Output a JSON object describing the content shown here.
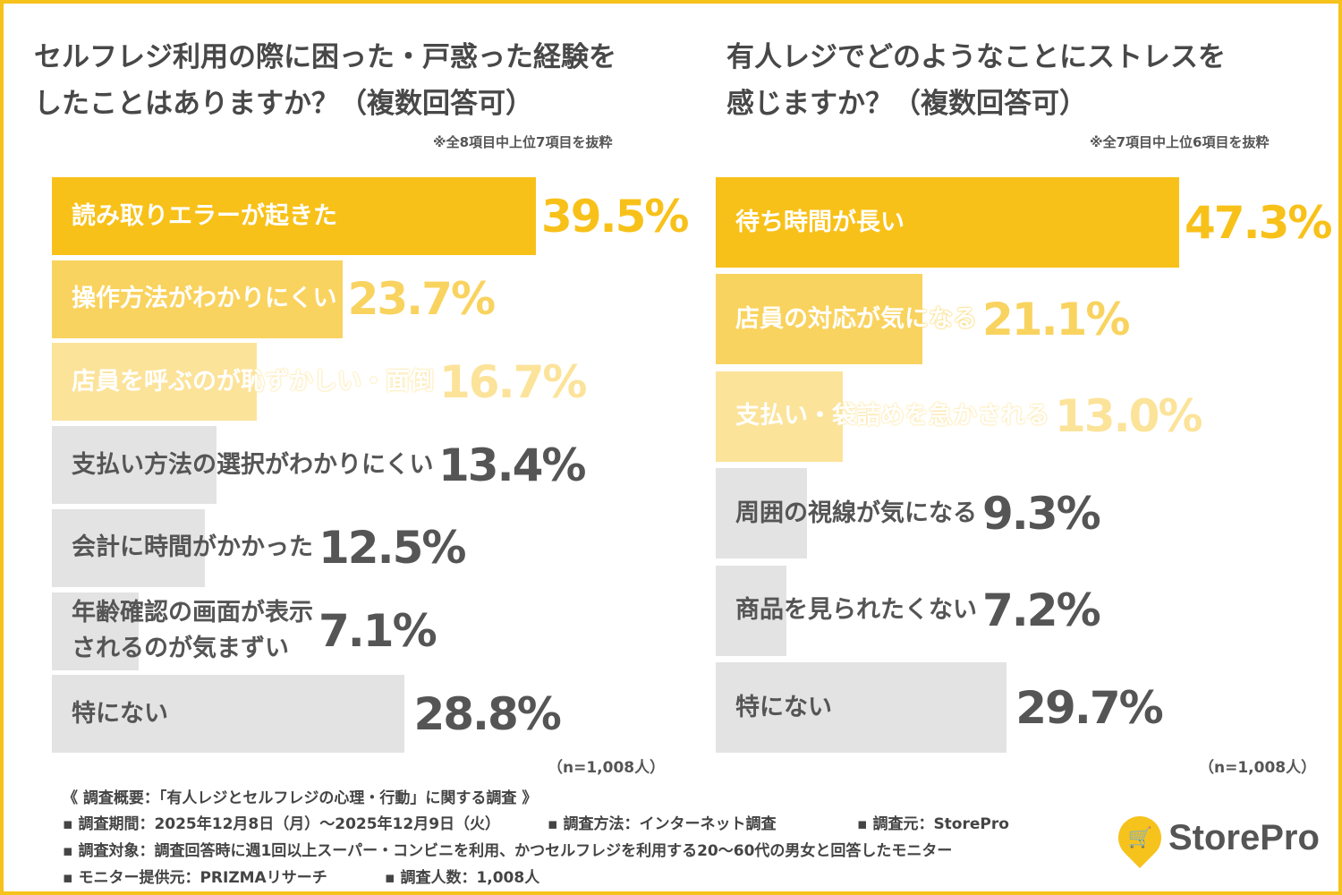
{
  "chart_data": [
    {
      "type": "bar",
      "orientation": "horizontal",
      "title": "セルフレジ利用の際に困った・戸惑った経験を\nしたことはありますか？（複数回答可）",
      "note": "※全8項目中上位7項目を抜粋",
      "sample": "（n=1,008人）",
      "categories": [
        "読み取りエラーが起きた",
        "操作方法がわかりにくい",
        "店員を呼ぶのが恥ずかしい・面倒",
        "支払い方法の選択がわかりにくい",
        "会計に時間がかかった",
        "年齢確認の画面が表示\nされるのが気まずい",
        "特にない"
      ],
      "values": [
        39.5,
        23.7,
        16.7,
        13.4,
        12.5,
        7.1,
        28.8
      ],
      "value_labels": [
        "39.5%",
        "23.7%",
        "16.7%",
        "13.4%",
        "12.5%",
        "7.1%",
        "28.8%"
      ]
    },
    {
      "type": "bar",
      "orientation": "horizontal",
      "title": "有人レジでどのようなことにストレスを\n感じますか？（複数回答可）",
      "note": "※全7項目中上位6項目を抜粋",
      "sample": "（n=1,008人）",
      "categories": [
        "待ち時間が長い",
        "店員の対応が気になる",
        "支払い・袋詰めを急かされる",
        "周囲の視線が気になる",
        "商品を見られたくない",
        "特にない"
      ],
      "values": [
        47.3,
        21.1,
        13.0,
        9.3,
        7.2,
        29.7
      ],
      "value_labels": [
        "47.3%",
        "21.1%",
        "13.0%",
        "9.3%",
        "7.2%",
        "29.7%"
      ]
    }
  ],
  "colors": {
    "rank1": "#F8C11A",
    "rank2": "#F9D35F",
    "rank3": "#FCE39A",
    "other": "#E3E3E3",
    "frame": "#F6C21C"
  },
  "footer": {
    "summary": "《 調査概要：「有人レジとセルフレジの心理・行動」に関する調査 》",
    "period": "▪ 調査期間：2025年12月8日（月）～2025年12月9日（火）",
    "method": "▪ 調査方法：インターネット調査",
    "source": "▪ 調査元：StorePro",
    "target": "▪ 調査対象：調査回答時に週1回以上スーパー・コンビニを利用、かつセルフレジを利用する20～60代の男女と回答したモニター",
    "provider": "▪ モニター提供元：PRIZMAリサーチ",
    "count": "▪ 調査人数：1,008人"
  },
  "logo": {
    "text": "StorePro",
    "icon": "cart-pin-icon"
  }
}
